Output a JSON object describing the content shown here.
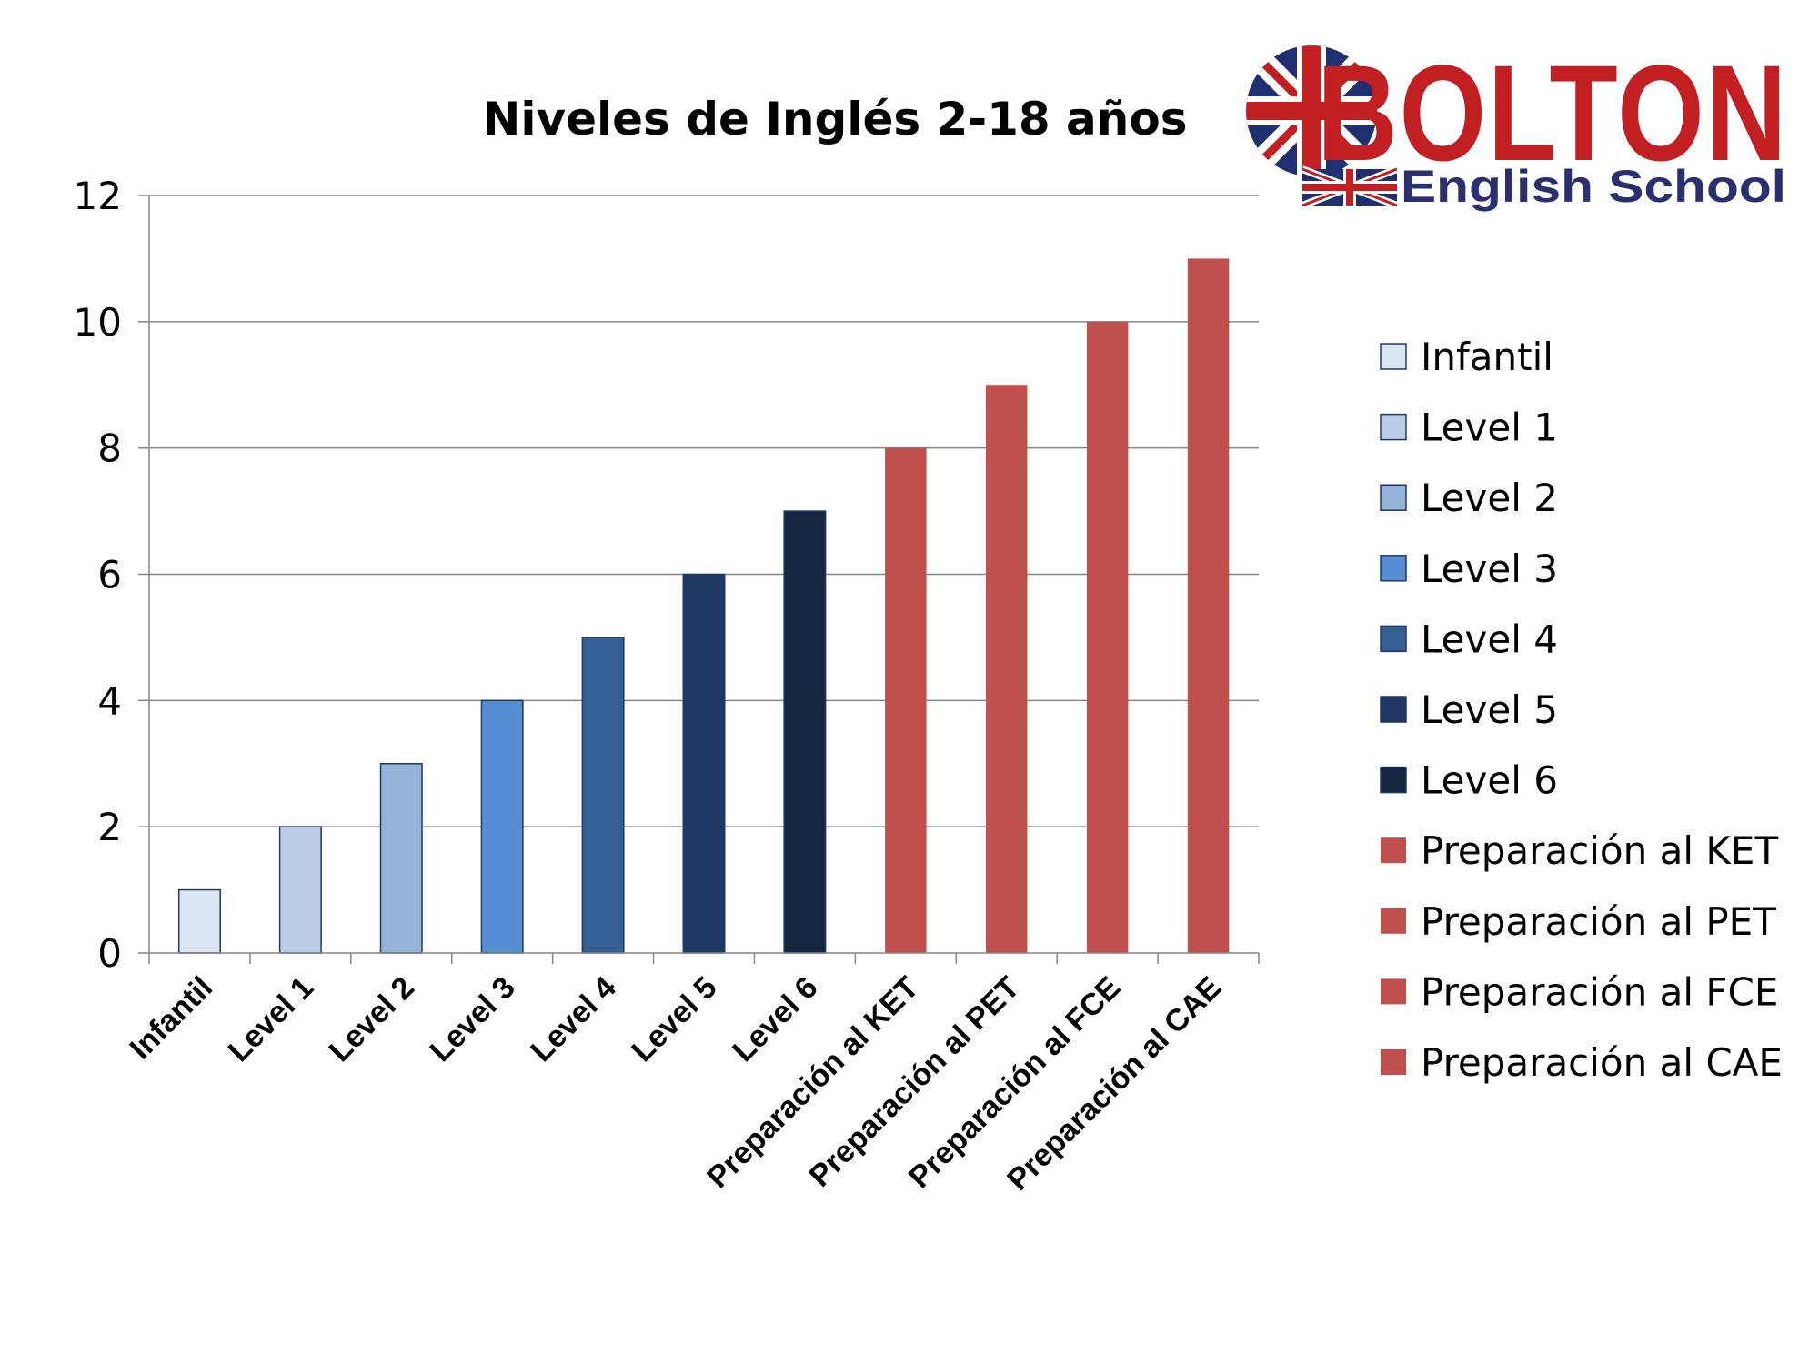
{
  "logo": {
    "name": "BOLTON",
    "subtitle": "English School"
  },
  "colors": {
    "infantil": "#dce6f2",
    "level1": "#b9cde5",
    "level2": "#95b3d7",
    "level3": "#558ed5",
    "level4": "#376092",
    "level5": "#1f3864",
    "level6": "#142640",
    "prep": "#c0504d",
    "grid": "#868686",
    "bar_outline": "#1f3864"
  },
  "chart_data": {
    "type": "bar",
    "title": "Niveles de Inglés 2-18 años",
    "xlabel": "",
    "ylabel": "",
    "ylim": [
      0,
      12
    ],
    "yticks": [
      "0",
      "2",
      "4",
      "6",
      "8",
      "10",
      "12"
    ],
    "grid": true,
    "legend_position": "right",
    "categories": [
      "Infantil",
      "Level 1",
      "Level 2",
      "Level 3",
      "Level 4",
      "Level 5",
      "Level 6",
      "Preparación al KET",
      "Preparación al PET",
      "Preparación al FCE",
      "Preparación al CAE"
    ],
    "values": [
      1,
      2,
      3,
      4,
      5,
      6,
      7,
      8,
      9,
      10,
      11
    ],
    "bar_colors": [
      "#dce6f2",
      "#b9cde5",
      "#95b3d7",
      "#558ed5",
      "#376092",
      "#1f3864",
      "#142640",
      "#c0504d",
      "#c0504d",
      "#c0504d",
      "#c0504d"
    ],
    "legend": [
      "Infantil",
      "Level 1",
      "Level 2",
      "Level 3",
      "Level 4",
      "Level 5",
      "Level 6",
      "Preparación al KET",
      "Preparación al PET",
      "Preparación al FCE",
      "Preparación al CAE"
    ]
  }
}
